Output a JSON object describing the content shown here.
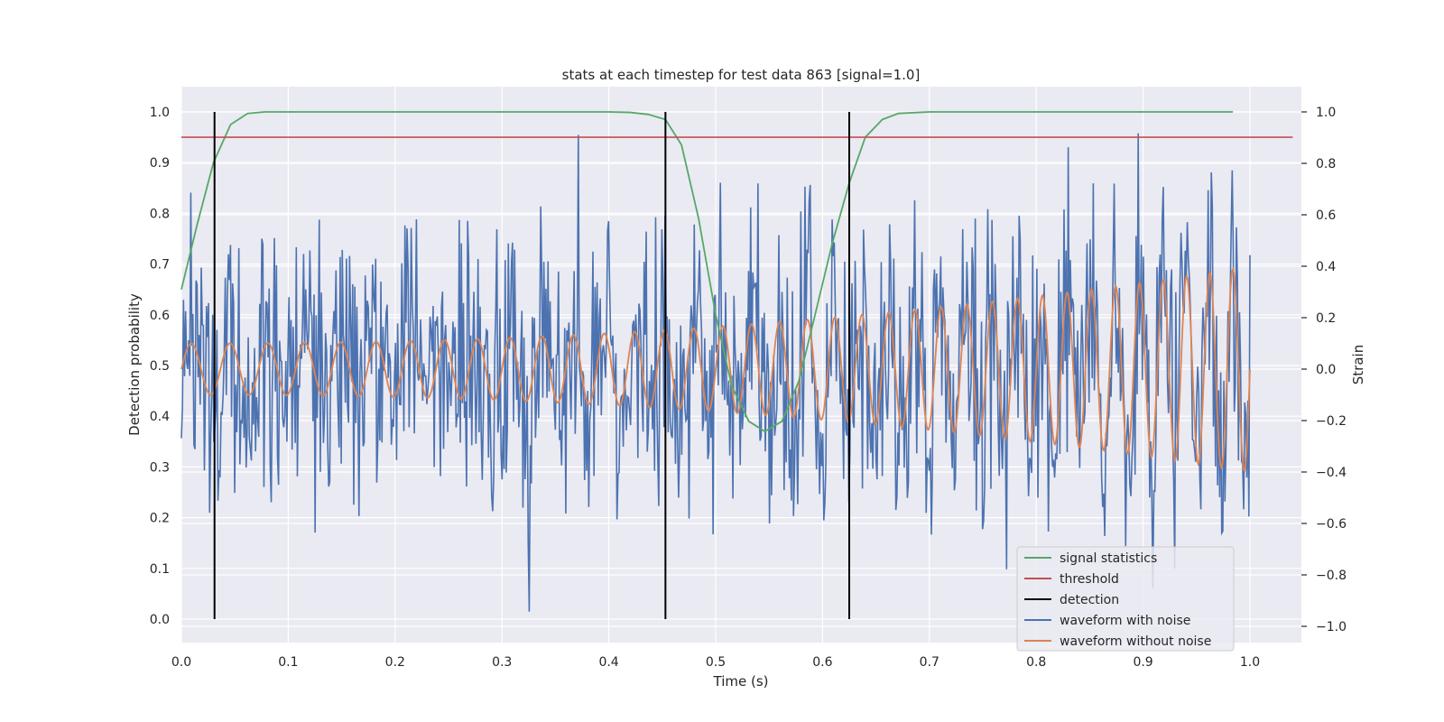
{
  "chart_data": {
    "type": "line",
    "title": "stats at each timestep for test data 863 [signal=1.0]",
    "xlabel": "Time (s)",
    "ylabel": "Detection probability",
    "y2label": "Strain",
    "xlim": [
      0.0,
      1.05
    ],
    "ylim": [
      -0.05,
      1.05
    ],
    "y2lim": [
      -1.05,
      1.1
    ],
    "xticks": [
      "0.0",
      "0.1",
      "0.2",
      "0.3",
      "0.4",
      "0.5",
      "0.6",
      "0.7",
      "0.8",
      "0.9",
      "1.0"
    ],
    "yticks": [
      "0.0",
      "0.1",
      "0.2",
      "0.3",
      "0.4",
      "0.5",
      "0.6",
      "0.7",
      "0.8",
      "0.9",
      "1.0"
    ],
    "y2ticks": [
      "−1.0",
      "−0.8",
      "−0.6",
      "−0.4",
      "−0.2",
      "0.0",
      "0.2",
      "0.4",
      "0.6",
      "0.8",
      "1.0"
    ],
    "grid": true,
    "legend_position": "lower-right",
    "series": [
      {
        "name": "signal statistics",
        "axis": "left",
        "color": "#55a868",
        "x": [
          0.0,
          0.015,
          0.03,
          0.046,
          0.062,
          0.078,
          0.1,
          0.2,
          0.3,
          0.4,
          0.42,
          0.437,
          0.453,
          0.468,
          0.484,
          0.5,
          0.515,
          0.531,
          0.546,
          0.562,
          0.578,
          0.593,
          0.609,
          0.625,
          0.64,
          0.656,
          0.671,
          0.7,
          0.8,
          0.9,
          0.984
        ],
        "y": [
          0.65,
          0.78,
          0.9,
          0.975,
          0.997,
          1.0,
          1.0,
          1.0,
          1.0,
          1.0,
          0.999,
          0.995,
          0.985,
          0.935,
          0.79,
          0.6,
          0.46,
          0.39,
          0.37,
          0.39,
          0.47,
          0.6,
          0.74,
          0.86,
          0.95,
          0.985,
          0.997,
          1.0,
          1.0,
          1.0,
          1.0
        ]
      },
      {
        "name": "threshold",
        "axis": "left",
        "color": "#c44e52",
        "x": [
          0.0,
          1.04
        ],
        "y": [
          0.95,
          0.95
        ]
      },
      {
        "name": "detection",
        "axis": "left",
        "color": "#000000",
        "x": [
          0.031,
          0.453,
          0.625
        ],
        "y_range": [
          0.0,
          1.0
        ]
      },
      {
        "name": "waveform with noise",
        "axis": "right",
        "color": "#4c72b0",
        "x_range": [
          0.0,
          1.0
        ],
        "points": 1024,
        "y_range_observed": [
          -1.0,
          1.0
        ]
      },
      {
        "name": "waveform without noise",
        "axis": "right",
        "color": "#dd8452",
        "x_range": [
          0.0,
          1.0
        ],
        "frequency_start_hz": 27,
        "frequency_end_hz": 47,
        "amplitude_start": 0.1,
        "amplitude_end": 0.4
      }
    ]
  }
}
